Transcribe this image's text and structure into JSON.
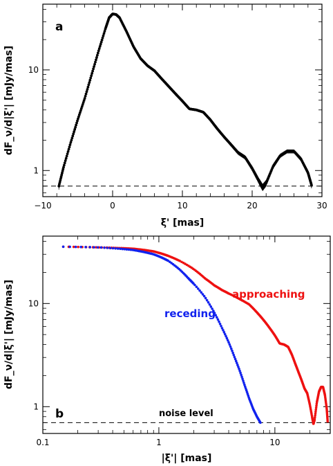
{
  "chart_data": [
    {
      "type": "scatter",
      "panel_label": "a",
      "xlabel": "ξ' [mas]",
      "ylabel": "dF_ν/d|ξ'| [mJy/mas]",
      "x_scale": "linear",
      "y_scale": "log",
      "xlim": [
        -10,
        30
      ],
      "ylim": [
        0.55,
        45
      ],
      "x_ticks": [
        -10,
        0,
        10,
        20,
        30
      ],
      "x_tick_labels": [
        "−10",
        "0",
        "10",
        "20",
        "30"
      ],
      "y_ticks": [
        1,
        10
      ],
      "y_tick_labels": [
        "1",
        "10"
      ],
      "noise_level": 0.7,
      "series": [
        {
          "color": "#000000",
          "error_bars": true,
          "x": [
            -7.7,
            -7.0,
            -6.0,
            -5.0,
            -4.0,
            -3.0,
            -2.0,
            -1.0,
            -0.5,
            0.0,
            0.5,
            1.0,
            2.0,
            3.0,
            4.0,
            5.0,
            6.0,
            7.0,
            8.0,
            9.0,
            10.0,
            11.0,
            12.0,
            13.0,
            14.0,
            15.0,
            16.0,
            17.0,
            18.0,
            19.0,
            20.0,
            21.0,
            21.5,
            22.0,
            23.0,
            24.0,
            25.0,
            26.0,
            27.0,
            28.0,
            28.5
          ],
          "y": [
            0.7,
            1.1,
            1.9,
            3.2,
            5.2,
            9.0,
            15.5,
            26.0,
            33.0,
            36.0,
            35.5,
            33.0,
            24.0,
            17.0,
            13.0,
            11.0,
            9.8,
            8.2,
            6.9,
            5.8,
            4.9,
            4.1,
            4.0,
            3.8,
            3.2,
            2.6,
            2.15,
            1.8,
            1.5,
            1.35,
            1.05,
            0.78,
            0.68,
            0.75,
            1.1,
            1.4,
            1.55,
            1.55,
            1.3,
            0.95,
            0.72
          ]
        }
      ]
    },
    {
      "type": "scatter",
      "panel_label": "b",
      "xlabel": "|ξ'| [mas]",
      "ylabel": "dF_ν/d|ξ'| [mJy/mas]",
      "x_scale": "log",
      "y_scale": "log",
      "xlim": [
        0.1,
        30
      ],
      "ylim": [
        0.55,
        45
      ],
      "x_ticks": [
        0.1,
        1,
        10
      ],
      "x_tick_labels": [
        "0.1",
        "1",
        "10"
      ],
      "y_ticks": [
        1,
        10
      ],
      "y_tick_labels": [
        "1",
        "10"
      ],
      "noise_level": 0.7,
      "noise_label": "noise level",
      "series": [
        {
          "name": "approaching",
          "color": "#ee1111",
          "x": [
            0.15,
            0.3,
            0.45,
            0.6,
            0.75,
            0.9,
            1.05,
            1.2,
            1.5,
            2.0,
            2.5,
            3.0,
            3.5,
            4.0,
            5.0,
            6.0,
            7.0,
            8.0,
            9.0,
            10.0,
            11.0,
            12.0,
            13.0,
            14.0,
            15.0,
            16.0,
            17.0,
            18.0,
            19.0,
            20.0,
            21.0,
            21.5,
            22.0,
            23.0,
            24.0,
            25.0,
            26.0,
            27.0,
            28.0,
            28.5
          ],
          "y": [
            35.5,
            35.0,
            34.5,
            34.0,
            33.0,
            32.0,
            30.5,
            29.0,
            26.0,
            21.5,
            17.5,
            15.0,
            13.5,
            12.5,
            11.0,
            9.8,
            8.2,
            6.9,
            5.8,
            4.9,
            4.1,
            4.0,
            3.8,
            3.2,
            2.6,
            2.15,
            1.8,
            1.5,
            1.35,
            1.05,
            0.78,
            0.68,
            0.75,
            1.1,
            1.4,
            1.55,
            1.55,
            1.3,
            0.95,
            0.72
          ]
        },
        {
          "name": "receding",
          "color": "#1122ee",
          "x": [
            0.15,
            0.3,
            0.45,
            0.6,
            0.75,
            0.9,
            1.05,
            1.2,
            1.5,
            1.8,
            2.0,
            2.5,
            3.0,
            3.5,
            4.0,
            4.5,
            5.0,
            5.5,
            6.0,
            6.5,
            7.0,
            7.5
          ],
          "y": [
            35.5,
            35.0,
            34.0,
            33.0,
            31.5,
            30.0,
            28.0,
            26.0,
            21.5,
            17.5,
            15.5,
            11.5,
            8.2,
            5.8,
            4.2,
            3.0,
            2.2,
            1.6,
            1.2,
            0.95,
            0.8,
            0.7
          ]
        }
      ]
    }
  ]
}
